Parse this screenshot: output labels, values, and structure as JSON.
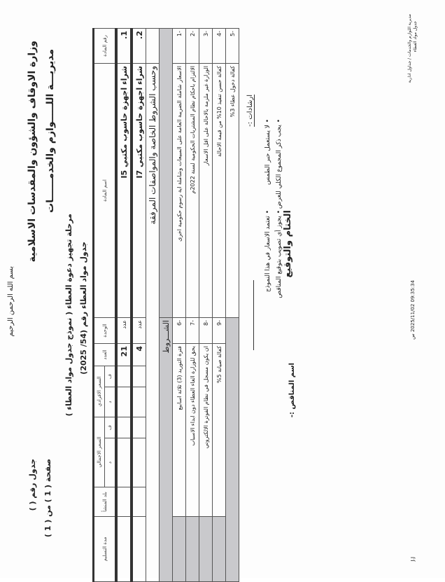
{
  "header": {
    "basmala": "بسم الله الرحمن الرحيم",
    "ministry": "وزارة الاوقاف والشؤون والمقدسات الاسلامية",
    "directorate": "مديريـــة اللـــــوازم والخدمــــــات",
    "table_no": "جدول رقم (        )",
    "page": "صفحة ( 1 ) من ( 1 )",
    "stage": "مرحلة تجهيز دعوة العطاء ( نموذج جدول مواد العطاء )",
    "tender_table": "جدول مواد العطاء رقم (54/ 2025)"
  },
  "table": {
    "columns": {
      "item_no": "رقم المادة",
      "item_name": "اسم المادة",
      "unit": "الوحدة",
      "qty": "العدد",
      "unit_price": "السعر الافرادي",
      "total_price": "السعر الاجمالي",
      "fils": "ف",
      "dinar": "د",
      "origin": "بلد المنشأ",
      "delivery": "مدة التسليم"
    },
    "rows": [
      {
        "no": "1.",
        "name": "شراء اجهزة حاسوب مكتبي I5",
        "unit": "عدد",
        "qty": "21"
      },
      {
        "no": "2.",
        "name": "شراء اجهزة حاسوب مكتبي I7",
        "unit": "عدد",
        "qty": "4"
      }
    ],
    "spec_note": "وحسب الشروط الخاصة والمواصفات المرفقة",
    "conditions_title": "الشـــروط",
    "conditions": [
      {
        "no": "-1",
        "text": "الاسعار شاملة الضريبة العامة على المبيعات وشاملة اية رسوم حكومية اخرى"
      },
      {
        "no": "-2",
        "text": "الالتزام باحكام نظام المشتريات الحكومية لسنة 2022م"
      },
      {
        "no": "-3",
        "text": "الوزارة غير ملزمة بالاحالة على اقل الاسعار"
      },
      {
        "no": "-4",
        "text": "كفالة حسن تنفيذ 10% من قيمة الاحالة"
      },
      {
        "no": "-5",
        "text": "كفالة دخول عطاء 3%"
      },
      {
        "no": "-6",
        "text": "فترة التوريد (3) ثلاثة اسابيع"
      },
      {
        "no": "-7",
        "text": "يحق للوزارة الغاء العطاء دون ابداء الاسباب"
      },
      {
        "no": "-8",
        "text": "ان يكون مسجل في نظام الفوترة الالكتروني"
      },
      {
        "no": "-9",
        "text": "كفالة صيانة 5%"
      }
    ]
  },
  "instructions": {
    "title": "ارشادات :-",
    "items": [
      "لا يستعمل حبر الطمس",
      "تعتمد الاسعار في هذا النموذج",
      "يجب ذكر المجموع الكلي للعرض",
      "يجوز أي تصويب بتوقيع المناقص"
    ],
    "seal": "الختام والتوقيع",
    "bidder": "اسم المناقص :-"
  },
  "footer": {
    "dept": "مديرية اللوازم والخدمات / جداول ادارية",
    "form": "جدول مواد العطاء",
    "timestamp": "09:35:34 2025/11/02 س",
    "initials": "J.J"
  }
}
